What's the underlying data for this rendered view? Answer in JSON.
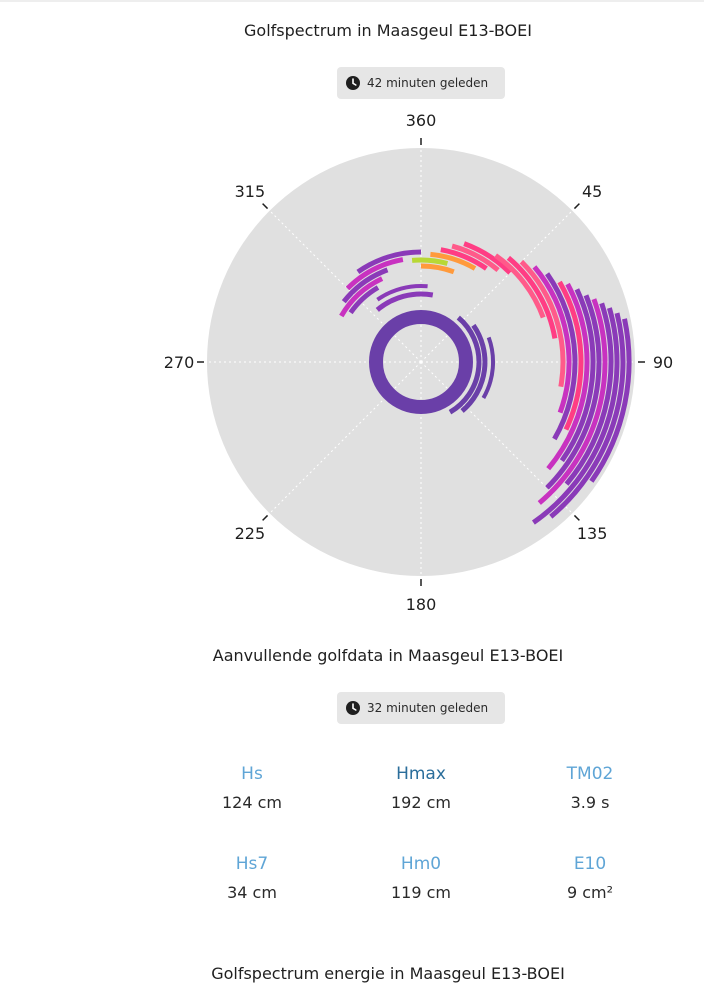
{
  "spectrum": {
    "title": "Golfspectrum in Maasgeul E13-BOEI",
    "timestamp": "42 minuten geleden",
    "axis_labels": [
      "360",
      "45",
      "90",
      "135",
      "180",
      "225",
      "270",
      "315"
    ],
    "clock_icon": "clock-icon"
  },
  "supplementary": {
    "title": "Aanvullende golfdata in Maasgeul E13-BOEI",
    "timestamp": "32 minuten geleden",
    "stats": [
      {
        "label": "Hs",
        "value": "124 cm"
      },
      {
        "label": "Hmax",
        "value": "192 cm"
      },
      {
        "label": "TM02",
        "value": "3.9 s"
      },
      {
        "label": "Hs7",
        "value": "34 cm"
      },
      {
        "label": "Hm0",
        "value": "119 cm"
      },
      {
        "label": "E10",
        "value": "9 cm²"
      }
    ]
  },
  "energy": {
    "title": "Golfspectrum energie in Maasgeul E13-BOEI"
  },
  "colors": {
    "polar_background": "#e0e0e0",
    "inner_ring": "#6a3fa8",
    "purple": "#8a3ab8",
    "magenta": "#c832c0",
    "pink": "#ff5a8a",
    "hotpink": "#ff3d84",
    "orange": "#ff9a3c",
    "lime": "#b8d835",
    "label_light_blue": "#5fa5d6",
    "label_dark_blue": "#2b6e9b"
  }
}
